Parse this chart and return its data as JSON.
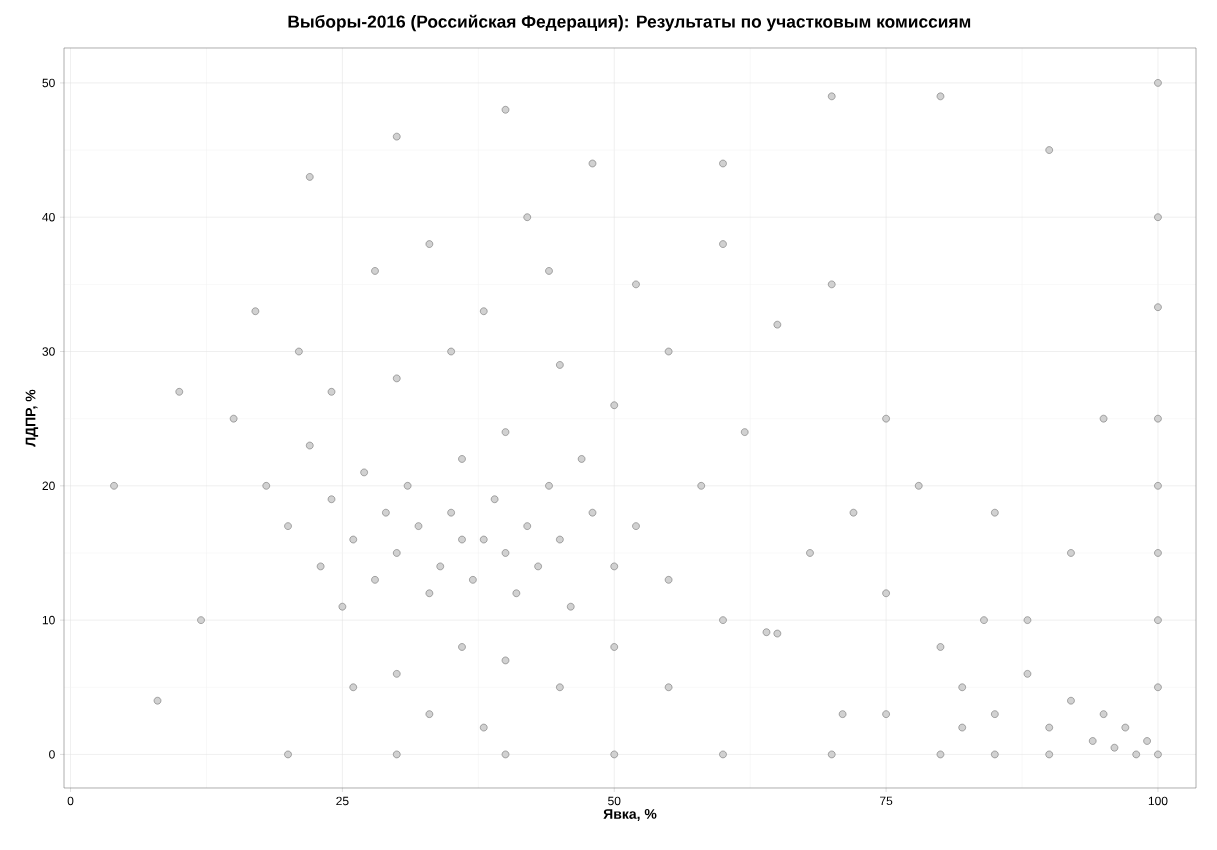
{
  "chart_data": {
    "type": "scatter",
    "title": "Выборы-2016 (Российская Федерация): Результаты по участковым комиссиям",
    "xlabel": "Явка, %",
    "ylabel": "ЛДПР, %",
    "xlim": [
      -0.6,
      103.5
    ],
    "ylim": [
      -2.5,
      52.6
    ],
    "xticks": [
      0,
      25,
      50,
      75,
      100
    ],
    "yticks": [
      0,
      10,
      20,
      30,
      40,
      50
    ],
    "grid": true,
    "marker": "circle",
    "series": [
      {
        "color": "#666666",
        "x": [
          30,
          32,
          34,
          35,
          36,
          37,
          38,
          39,
          40,
          41,
          42,
          43,
          44,
          45,
          33,
          31,
          36,
          40,
          46,
          48,
          50,
          52,
          55,
          47,
          29,
          28,
          27,
          26,
          25,
          24,
          23,
          22,
          20,
          18,
          15,
          12,
          8,
          4,
          10,
          17,
          21,
          24,
          30,
          35,
          28,
          33,
          38,
          42,
          45,
          50,
          55,
          48,
          40,
          30,
          22,
          60,
          65,
          70,
          62,
          58,
          60,
          65,
          64,
          68,
          72,
          75,
          78,
          80,
          82,
          84,
          85,
          88,
          90,
          92,
          94,
          95,
          96,
          97,
          98,
          99,
          100,
          100,
          100,
          100,
          100,
          100,
          100,
          100,
          100,
          90,
          85,
          80,
          70,
          60,
          50,
          40,
          30,
          20,
          71,
          75,
          82,
          88,
          92,
          95,
          90,
          80,
          70,
          60,
          75,
          85,
          36,
          40,
          45,
          50,
          55,
          30,
          26,
          33,
          38,
          44,
          52
        ],
        "values": [
          15,
          17,
          14,
          18,
          16,
          13,
          16,
          19,
          15,
          12,
          17,
          14,
          20,
          16,
          12,
          20,
          22,
          24,
          11,
          18,
          14,
          17,
          13,
          22,
          18,
          13,
          21,
          16,
          11,
          19,
          14,
          23,
          17,
          20,
          25,
          10,
          4,
          20,
          27,
          33,
          30,
          27,
          28,
          30,
          36,
          38,
          33,
          40,
          29,
          26,
          30,
          44,
          48,
          46,
          43,
          38,
          32,
          35,
          24,
          20,
          10,
          9,
          9.1,
          15,
          18,
          12,
          20,
          8,
          5,
          10,
          3,
          6,
          2,
          4,
          1,
          3,
          0.5,
          2,
          0,
          1,
          0,
          5,
          10,
          15,
          20,
          25,
          33.3,
          40,
          50,
          0,
          0,
          0,
          0,
          0,
          0,
          0,
          0,
          0,
          3,
          3,
          2,
          10,
          15,
          25,
          45,
          49,
          49,
          44,
          25,
          18,
          8,
          7,
          5,
          8,
          5,
          6,
          5,
          3,
          2,
          36,
          35
        ]
      }
    ]
  }
}
